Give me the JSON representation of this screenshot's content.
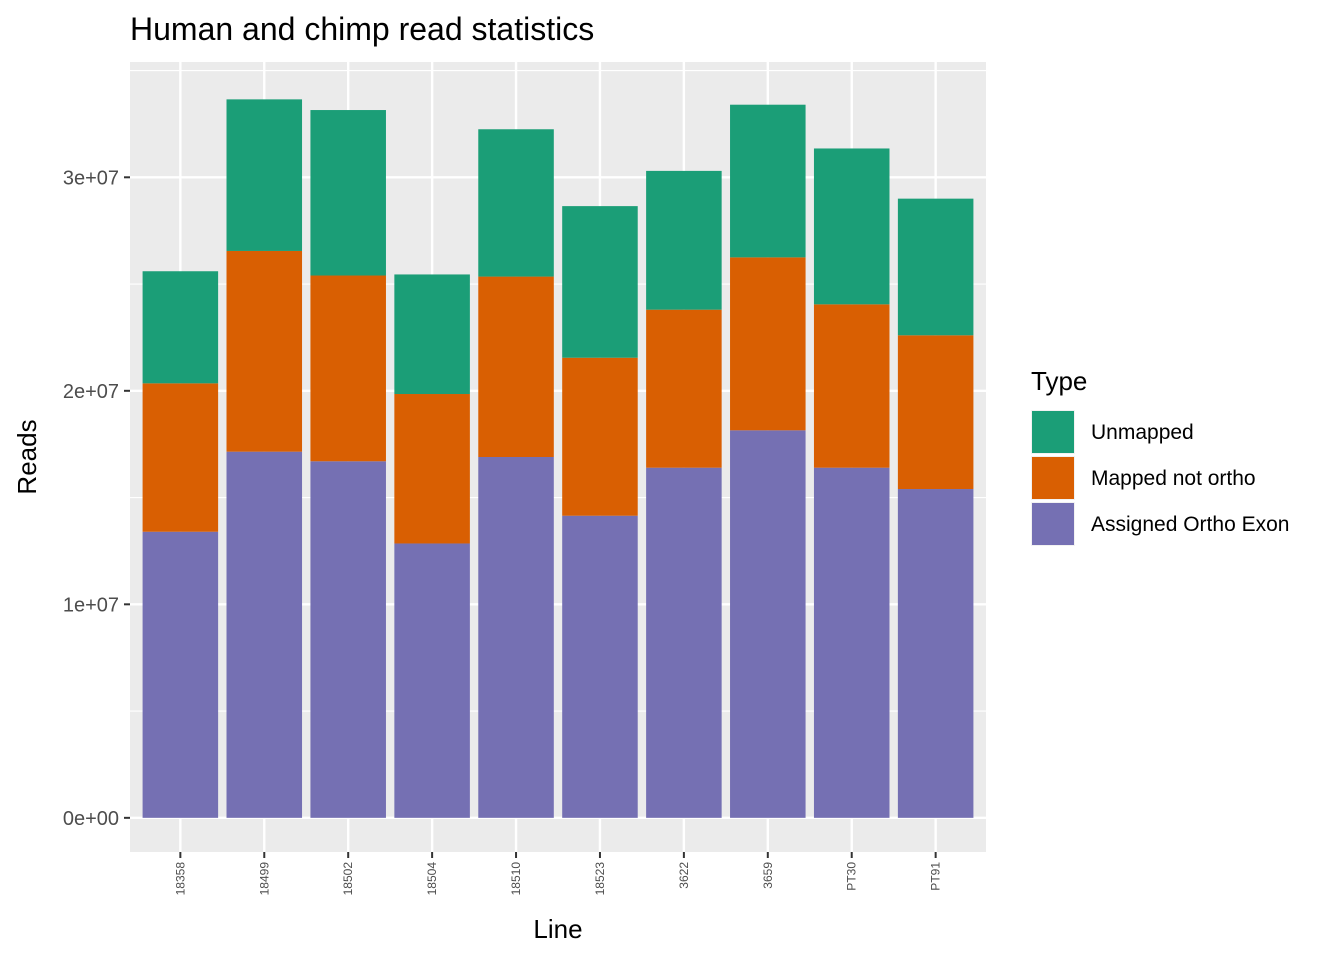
{
  "chart_data": {
    "type": "bar",
    "stacked": true,
    "title": "Human and chimp read statistics",
    "xlabel": "Line",
    "ylabel": "Reads",
    "categories": [
      "18358",
      "18499",
      "18502",
      "18504",
      "18510",
      "18523",
      "3622",
      "3659",
      "PT30",
      "PT91"
    ],
    "ylim": [
      -1600000,
      35400000
    ],
    "yticks": [
      0,
      10000000,
      20000000,
      30000000
    ],
    "ytick_labels": [
      "0e+00",
      "1e+07",
      "2e+07",
      "3e+07"
    ],
    "grid": true,
    "legend": {
      "title": "Type",
      "placement": "right",
      "entries": [
        "Unmapped",
        "Mapped not ortho",
        "Assigned Ortho Exon"
      ]
    },
    "series": [
      {
        "name": "Assigned Ortho Exon",
        "color": "#7570b3",
        "values": [
          13400000,
          17150000,
          16700000,
          12850000,
          16900000,
          14150000,
          16400000,
          18150000,
          16400000,
          15400000
        ]
      },
      {
        "name": "Mapped not ortho",
        "color": "#d95f02",
        "values": [
          6950000,
          9400000,
          8700000,
          7000000,
          8450000,
          7400000,
          7400000,
          8100000,
          7650000,
          7200000
        ]
      },
      {
        "name": "Unmapped",
        "color": "#1b9e77",
        "values": [
          5250000,
          7100000,
          7750000,
          5600000,
          6900000,
          7100000,
          6500000,
          7150000,
          7300000,
          6400000
        ]
      }
    ]
  }
}
